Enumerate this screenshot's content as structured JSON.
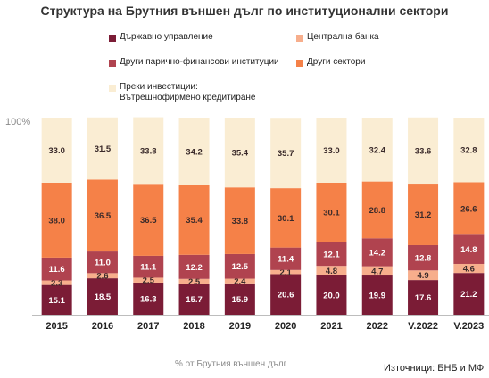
{
  "chart_data": {
    "type": "bar",
    "stacked": true,
    "title": "Структура на Брутния външен дълг по институционални сектори",
    "categories": [
      "2015",
      "2016",
      "2017",
      "2018",
      "2019",
      "2020",
      "2021",
      "2022",
      "V.2022",
      "V.2023"
    ],
    "series": [
      {
        "name": "Държавно управление",
        "color": "#7b1c36",
        "values": [
          15.1,
          18.5,
          16.3,
          15.7,
          15.9,
          20.6,
          20.0,
          19.9,
          17.6,
          21.2
        ]
      },
      {
        "name": "Централна банка",
        "color": "#f7ae8c",
        "values": [
          2.3,
          2.6,
          2.5,
          2.5,
          2.4,
          2.1,
          4.8,
          4.7,
          4.9,
          4.6
        ]
      },
      {
        "name": "Други парично-финансови институции",
        "color": "#b0434f",
        "values": [
          11.6,
          11.0,
          11.1,
          12.2,
          12.5,
          11.4,
          12.1,
          14.2,
          12.8,
          14.8
        ]
      },
      {
        "name": "Други сектори",
        "color": "#f58148",
        "values": [
          38.0,
          36.5,
          36.5,
          35.4,
          33.8,
          30.1,
          30.1,
          28.8,
          31.2,
          26.6
        ]
      },
      {
        "name": "Преки инвестиции:\nВътрешнофирмено кредитиране",
        "color": "#faedd3",
        "values": [
          33.0,
          31.5,
          33.8,
          34.2,
          35.4,
          35.7,
          33.0,
          32.4,
          33.6,
          32.8
        ]
      }
    ],
    "ylim": [
      0,
      100
    ],
    "ytick_label": "100%",
    "xlabel": "% от Брутния външен дълг",
    "grid": false,
    "legend_position": "top"
  },
  "source": "Източници: БНБ и МФ",
  "legend_order": [
    0,
    1,
    2,
    3,
    4
  ]
}
